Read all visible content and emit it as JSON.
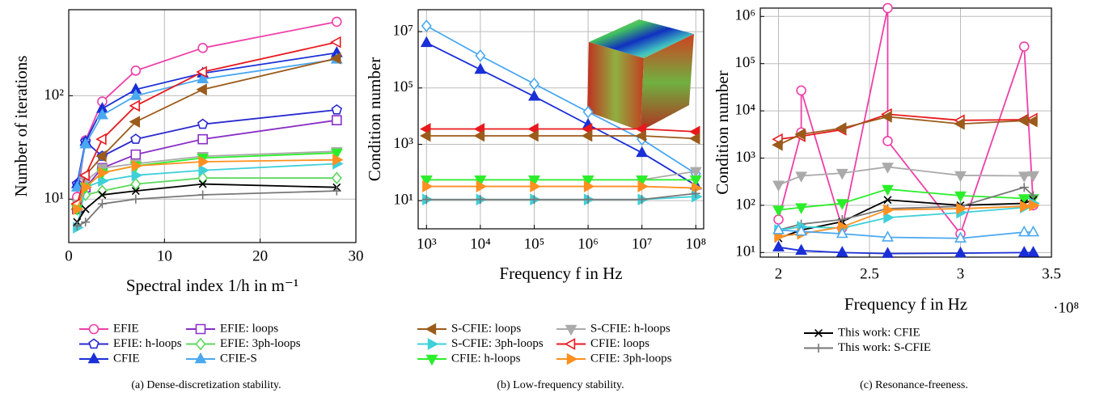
{
  "chart_data": [
    {
      "type": "line",
      "xlabel": "Spectral index 1/h in m⁻¹",
      "ylabel": "Number of iterations",
      "caption": "(a) Dense-discretization stability.",
      "x": [
        0.875,
        1.75,
        3.5,
        7,
        14,
        28
      ],
      "xlim": [
        0,
        30
      ],
      "xticks": [
        0,
        10,
        20,
        30
      ],
      "ylog": true,
      "ylim": [
        3.8,
        680
      ],
      "yticks": [
        {
          "value": 10,
          "label": "10¹"
        },
        {
          "value": 100,
          "label": "10²"
        }
      ],
      "grid": true,
      "series": [
        {
          "name": "EFIE",
          "color": "#ee3fa8",
          "marker": "circle-open",
          "values": [
            10.5,
            37,
            88,
            175,
            290,
            520
          ]
        },
        {
          "name": "EFIE: loops",
          "color": "#8a2fc6",
          "marker": "square-open",
          "values": [
            8,
            13,
            20,
            27,
            38,
            58
          ]
        },
        {
          "name": "EFIE: h-loops",
          "color": "#2a2ad0",
          "marker": "pentagon-open",
          "values": [
            14,
            36,
            26,
            38,
            53,
            73
          ]
        },
        {
          "name": "EFIE: 3ph-loops",
          "color": "#5cd85c",
          "marker": "diamond-open",
          "values": [
            8,
            11,
            12,
            14,
            16,
            16
          ]
        },
        {
          "name": "CFIE",
          "color": "#1a2fd6",
          "marker": "triangle",
          "values": [
            14,
            36,
            75,
            115,
            165,
            260
          ]
        },
        {
          "name": "CFIE-S",
          "color": "#4aa8f0",
          "marker": "triangle",
          "values": [
            13,
            34,
            65,
            100,
            145,
            225
          ]
        },
        {
          "name": "S-CFIE: loops",
          "color": "#9b5b1b",
          "marker": "left",
          "values": [
            8,
            17,
            26,
            56,
            115,
            230
          ]
        },
        {
          "name": "S-CFIE: h-loops",
          "color": "#aaaaaa",
          "marker": "down",
          "values": [
            9,
            15,
            20,
            22,
            26,
            29
          ]
        },
        {
          "name": "S-CFIE: 3ph-loops",
          "color": "#3fd0d8",
          "marker": "right",
          "values": [
            5.3,
            13,
            15,
            17,
            19,
            22
          ]
        },
        {
          "name": "CFIE: loops",
          "color": "#e8191e",
          "marker": "left-open",
          "values": [
            9,
            17,
            38,
            80,
            170,
            330
          ]
        },
        {
          "name": "CFIE: h-loops",
          "color": "#2bee2b",
          "marker": "down",
          "values": [
            8,
            13,
            18,
            21,
            25,
            28
          ]
        },
        {
          "name": "CFIE: 3ph-loops",
          "color": "#ff9020",
          "marker": "right",
          "values": [
            8,
            13,
            18,
            21,
            23,
            24
          ]
        },
        {
          "name": "This work: CFIE",
          "color": "#000000",
          "marker": "x",
          "values": [
            6,
            8,
            11,
            12,
            14,
            13
          ]
        },
        {
          "name": "This work: S-CFIE",
          "color": "#777777",
          "marker": "plus",
          "values": [
            5.5,
            6,
            9,
            10,
            11,
            12
          ]
        }
      ]
    },
    {
      "type": "line",
      "xlabel": "Frequency f in Hz",
      "ylabel": "Condition number",
      "caption": "(b) Low-frequency stability.",
      "x": [
        1000,
        10000,
        100000,
        1000000,
        10000000,
        100000000
      ],
      "xlog": true,
      "xlim": [
        700,
        140000000
      ],
      "xticks": [
        {
          "value": 1000,
          "label": "10³"
        },
        {
          "value": 10000,
          "label": "10⁴"
        },
        {
          "value": 100000,
          "label": "10⁵"
        },
        {
          "value": 1000000,
          "label": "10⁶"
        },
        {
          "value": 10000000,
          "label": "10⁷"
        },
        {
          "value": 100000000,
          "label": "10⁸"
        }
      ],
      "ylog": true,
      "ylim": [
        1,
        60000000
      ],
      "yticks": [
        {
          "value": 10,
          "label": "10¹"
        },
        {
          "value": 1000,
          "label": "10³"
        },
        {
          "value": 100000,
          "label": "10⁵"
        },
        {
          "value": 10000000,
          "label": "10⁷"
        }
      ],
      "grid": true,
      "series": [
        {
          "color": "#4aa8f0",
          "marker": "diamond-open",
          "values": [
            16000000,
            1400000,
            140000,
            14000,
            1500,
            90
          ]
        },
        {
          "color": "#1a2fd6",
          "marker": "triangle",
          "values": [
            4000000,
            450000,
            50000,
            5000,
            500,
            35
          ]
        },
        {
          "color": "#e8191e",
          "marker": "left",
          "values": [
            3500,
            3500,
            3500,
            3500,
            3500,
            2800
          ]
        },
        {
          "color": "#9b5b1b",
          "marker": "left",
          "values": [
            2000,
            2000,
            2000,
            2000,
            2000,
            1600
          ]
        },
        {
          "color": "#aaaaaa",
          "marker": "down",
          "values": [
            55,
            55,
            55,
            55,
            55,
            110
          ]
        },
        {
          "color": "#2bee2b",
          "marker": "down",
          "values": [
            55,
            55,
            55,
            55,
            55,
            55
          ]
        },
        {
          "color": "#ff9020",
          "marker": "right",
          "values": [
            32,
            32,
            32,
            32,
            32,
            28
          ]
        },
        {
          "color": "#3fd0d8",
          "marker": "right",
          "values": [
            11,
            11,
            11,
            11,
            11,
            14
          ]
        },
        {
          "color": "#777777",
          "marker": "plus",
          "values": [
            11,
            11,
            11,
            11,
            11,
            18
          ]
        }
      ]
    },
    {
      "type": "line",
      "xlabel": "Frequency f in Hz",
      "ylabel": "Condition number",
      "caption": "(c) Resonance-freeness.",
      "x_multiplier": "·10⁸",
      "x": [
        2,
        2.125,
        2.35,
        2.6,
        3,
        3.35,
        3.4
      ],
      "xlim": [
        1.9,
        3.5
      ],
      "xticks": [
        2,
        2.5,
        3,
        3.5
      ],
      "ylog": true,
      "ylim": [
        8,
        1500000
      ],
      "yticks": [
        {
          "value": 10,
          "label": "10¹"
        },
        {
          "value": 100,
          "label": "10²"
        },
        {
          "value": 1000,
          "label": "10³"
        },
        {
          "value": 10000,
          "label": "10⁴"
        },
        {
          "value": 100000,
          "label": "10⁵"
        },
        {
          "value": 1000000,
          "label": "10⁶"
        }
      ],
      "grid": true,
      "series": [
        {
          "color": "#ee3fa8",
          "marker": "circle-open",
          "x": [
            2,
            2.125,
            2.125,
            2.35,
            2.6,
            2.6,
            3,
            3.35,
            3.4
          ],
          "values": [
            50,
            3500,
            27000,
            33,
            1500000,
            2300,
            25,
            230000,
            100
          ]
        },
        {
          "color": "#e8191e",
          "marker": "left-open",
          "values": [
            2500,
            2900,
            4000,
            8500,
            6300,
            6500,
            6800
          ]
        },
        {
          "color": "#9b5b1b",
          "marker": "left",
          "values": [
            1900,
            3200,
            4300,
            7500,
            5300,
            6200,
            6000
          ]
        },
        {
          "color": "#aaaaaa",
          "marker": "down",
          "values": [
            270,
            420,
            480,
            650,
            430,
            420,
            430
          ]
        },
        {
          "color": "#2bee2b",
          "marker": "down",
          "values": [
            80,
            90,
            110,
            220,
            160,
            140,
            140
          ]
        },
        {
          "color": "#000000",
          "marker": "x",
          "values": [
            20,
            30,
            45,
            130,
            100,
            110,
            130
          ]
        },
        {
          "color": "#777777",
          "marker": "plus",
          "values": [
            30,
            40,
            50,
            85,
            95,
            240,
            160
          ]
        },
        {
          "color": "#3fd0d8",
          "marker": "right",
          "values": [
            30,
            35,
            33,
            55,
            70,
            90,
            110
          ]
        },
        {
          "color": "#ff9020",
          "marker": "right",
          "values": [
            22,
            25,
            35,
            80,
            85,
            95,
            100
          ]
        },
        {
          "color": "#4aa8f0",
          "marker": "triangle-open",
          "values": [
            30,
            28,
            25,
            21,
            20,
            27,
            27
          ]
        },
        {
          "color": "#1a2fd6",
          "marker": "triangle",
          "values": [
            13,
            11,
            10,
            9.5,
            9.7,
            10,
            10
          ]
        }
      ]
    }
  ]
}
